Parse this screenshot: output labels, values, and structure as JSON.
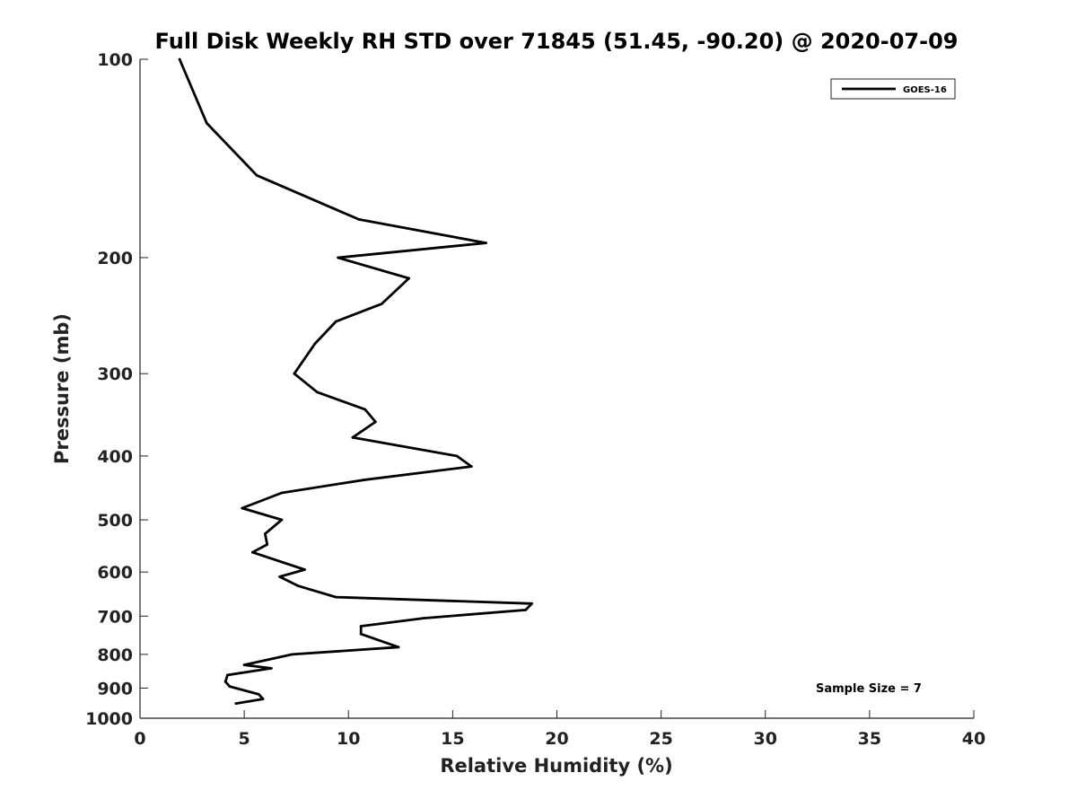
{
  "chart_data": {
    "type": "line",
    "title": "Full Disk Weekly RH STD over 71845 (51.45, -90.20) @ 2020-07-09",
    "xlabel": "Relative Humidity (%)",
    "ylabel": "Pressure (mb)",
    "xlim": [
      0,
      40
    ],
    "ylim": [
      100,
      1000
    ],
    "y_scale": "log",
    "y_reversed": true,
    "x_ticks": [
      "0",
      "5",
      "10",
      "15",
      "20",
      "25",
      "30",
      "35",
      "40"
    ],
    "y_ticks": [
      "100",
      "200",
      "300",
      "400",
      "500",
      "600",
      "700",
      "800",
      "900",
      "1000"
    ],
    "grid": false,
    "legend_position": "top-right",
    "series": [
      {
        "name": "GOES-16",
        "color": "#000000",
        "points": [
          [
            1.9,
            100
          ],
          [
            3.2,
            125
          ],
          [
            5.6,
            150
          ],
          [
            10.5,
            175
          ],
          [
            16.6,
            190
          ],
          [
            9.5,
            200
          ],
          [
            12.9,
            215
          ],
          [
            11.6,
            235
          ],
          [
            9.4,
            250
          ],
          [
            8.4,
            270
          ],
          [
            7.4,
            300
          ],
          [
            8.5,
            320
          ],
          [
            10.8,
            340
          ],
          [
            11.3,
            355
          ],
          [
            10.2,
            375
          ],
          [
            15.2,
            400
          ],
          [
            15.9,
            415
          ],
          [
            10.7,
            435
          ],
          [
            6.8,
            455
          ],
          [
            4.9,
            480
          ],
          [
            6.8,
            500
          ],
          [
            6.0,
            525
          ],
          [
            6.1,
            545
          ],
          [
            5.4,
            560
          ],
          [
            7.9,
            595
          ],
          [
            6.7,
            610
          ],
          [
            7.6,
            630
          ],
          [
            9.4,
            655
          ],
          [
            18.8,
            670
          ],
          [
            18.5,
            685
          ],
          [
            13.6,
            705
          ],
          [
            10.6,
            725
          ],
          [
            10.6,
            745
          ],
          [
            12.4,
            780
          ],
          [
            7.3,
            800
          ],
          [
            5.0,
            830
          ],
          [
            6.3,
            840
          ],
          [
            4.2,
            860
          ],
          [
            4.1,
            880
          ],
          [
            4.3,
            895
          ],
          [
            5.7,
            920
          ],
          [
            5.9,
            935
          ],
          [
            4.6,
            950
          ]
        ]
      }
    ],
    "annotation": "Sample Size = 7"
  }
}
